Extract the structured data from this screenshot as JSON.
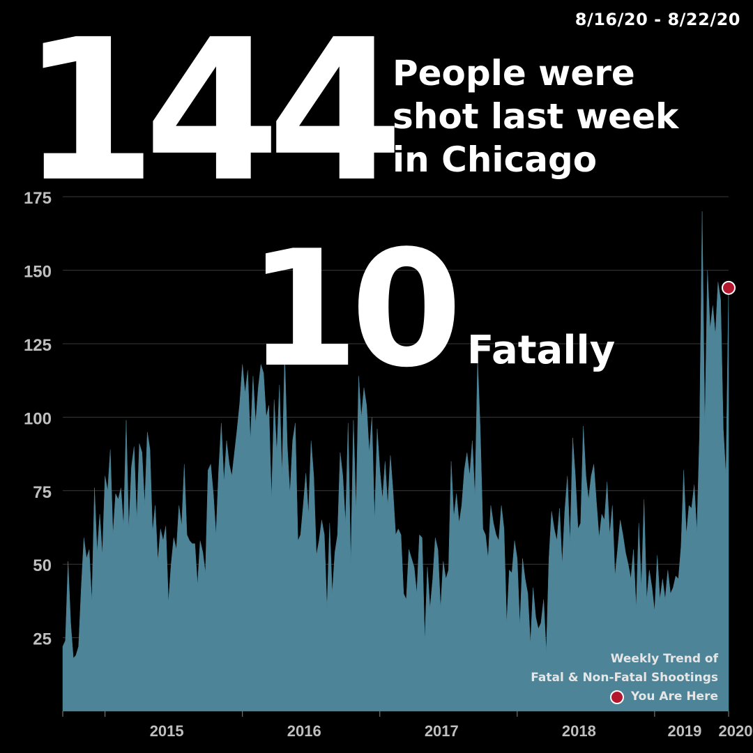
{
  "date_range": "8/16/20 - 8/22/20",
  "headline": {
    "count": "144",
    "line1": "People were",
    "line2": "shot last week",
    "line3": "in Chicago"
  },
  "fatal": {
    "count": "10",
    "label": "Fatally"
  },
  "legend": {
    "line1": "Weekly Trend of",
    "line2": "Fatal & Non-Fatal Shootings",
    "marker_label": "You Are Here"
  },
  "colors": {
    "background": "#000000",
    "area_fill": "#4d8497",
    "marker": "#b3182f",
    "text": "#ffffff",
    "axis_text": "#bfbfbf",
    "grid": "#3a3a3a"
  },
  "chart_data": {
    "type": "area",
    "x_start": "2014-09",
    "x_end": "2020-08-22",
    "ylim": [
      0,
      185
    ],
    "yticks": [
      25,
      50,
      75,
      100,
      125,
      150,
      175
    ],
    "xticks": [
      "2015",
      "2016",
      "2017",
      "2018",
      "2019",
      "2020"
    ],
    "grid": true,
    "highlight": {
      "label": "You Are Here",
      "value": 144
    },
    "values": [
      22,
      24,
      51,
      30,
      18,
      19,
      22,
      42,
      59,
      52,
      55,
      37,
      76,
      54,
      67,
      53,
      80,
      75,
      89,
      60,
      74,
      72,
      76,
      63,
      99,
      62,
      83,
      90,
      65,
      91,
      88,
      70,
      95,
      89,
      61,
      70,
      51,
      62,
      58,
      63,
      37,
      50,
      59,
      55,
      70,
      63,
      84,
      60,
      58,
      57,
      57,
      43,
      58,
      54,
      47,
      82,
      84,
      74,
      60,
      82,
      98,
      78,
      92,
      84,
      80,
      88,
      96,
      105,
      118,
      108,
      116,
      92,
      114,
      98,
      110,
      118,
      115,
      100,
      104,
      72,
      106,
      88,
      111,
      80,
      122,
      90,
      74,
      92,
      98,
      58,
      60,
      70,
      81,
      67,
      92,
      80,
      53,
      58,
      65,
      60,
      35,
      64,
      40,
      54,
      60,
      88,
      80,
      64,
      98,
      50,
      99,
      68,
      114,
      100,
      110,
      104,
      88,
      100,
      65,
      96,
      82,
      72,
      85,
      70,
      87,
      75,
      60,
      62,
      60,
      40,
      38,
      55,
      52,
      49,
      40,
      60,
      59,
      24,
      49,
      35,
      45,
      59,
      55,
      35,
      51,
      45,
      48,
      85,
      66,
      74,
      64,
      70,
      82,
      88,
      80,
      92,
      73,
      120,
      96,
      62,
      60,
      52,
      70,
      64,
      60,
      58,
      70,
      62,
      30,
      48,
      47,
      58,
      52,
      29,
      52,
      45,
      40,
      23,
      42,
      32,
      28,
      30,
      38,
      20,
      52,
      68,
      62,
      58,
      69,
      50,
      68,
      80,
      57,
      93,
      80,
      62,
      64,
      97,
      80,
      72,
      80,
      84,
      71,
      59,
      67,
      65,
      78,
      60,
      70,
      46,
      55,
      65,
      60,
      54,
      50,
      45,
      55,
      35,
      64,
      42,
      72,
      38,
      48,
      42,
      34,
      53,
      38,
      45,
      38,
      48,
      40,
      42,
      46,
      45,
      56,
      82,
      60,
      70,
      69,
      77,
      61,
      94,
      170,
      96,
      150,
      130,
      138,
      128,
      146,
      140,
      96,
      80,
      144
    ]
  }
}
